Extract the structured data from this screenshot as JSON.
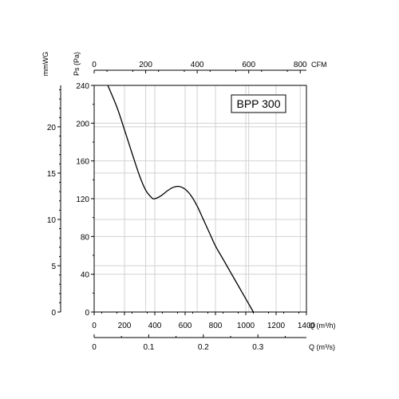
{
  "chart_data": {
    "type": "line",
    "model_label": "BPP 300",
    "x_axis_primary": {
      "label": "Q (m³/h)",
      "range": [
        0,
        1400
      ],
      "ticks": [
        0,
        200,
        400,
        600,
        800,
        1000,
        1200,
        1400
      ],
      "tick_labels": [
        "0",
        "200",
        "400",
        "600",
        "800",
        "1000",
        "1200",
        "1400"
      ]
    },
    "x_axis_top": {
      "label": "CFM",
      "ticks": [
        0,
        200,
        400,
        600,
        800
      ],
      "tick_labels": [
        "0",
        "200",
        "400",
        "600",
        "800"
      ]
    },
    "x_axis_bottom": {
      "label": "Q (m³/s)",
      "ticks": [
        0,
        0.1,
        0.2,
        0.3
      ],
      "tick_labels": [
        "0",
        "0.1",
        "0.2",
        "0.3"
      ]
    },
    "y_axis_primary": {
      "label": "Ps (Pa)",
      "range": [
        0,
        240
      ],
      "ticks": [
        0,
        40,
        80,
        120,
        160,
        200,
        240
      ],
      "tick_labels": [
        "0",
        "40",
        "80",
        "120",
        "160",
        "200",
        "240"
      ]
    },
    "y_axis_secondary": {
      "label": "mmWG",
      "ticks": [
        0,
        5,
        10,
        15,
        20
      ],
      "tick_labels": [
        "0",
        "5",
        "10",
        "15",
        "20"
      ]
    },
    "grid": true,
    "series": [
      {
        "x": [
          90,
          150,
          200,
          250,
          300,
          340,
          380,
          400,
          440,
          480,
          520,
          560,
          600,
          640,
          680,
          720,
          760,
          800,
          850,
          900,
          950,
          1000,
          1050
        ],
        "y": [
          240,
          217,
          193,
          168,
          144,
          129,
          121,
          120,
          123,
          128,
          132,
          133,
          130,
          123,
          112,
          98,
          84,
          70,
          56,
          42,
          28,
          14,
          0
        ]
      }
    ]
  }
}
